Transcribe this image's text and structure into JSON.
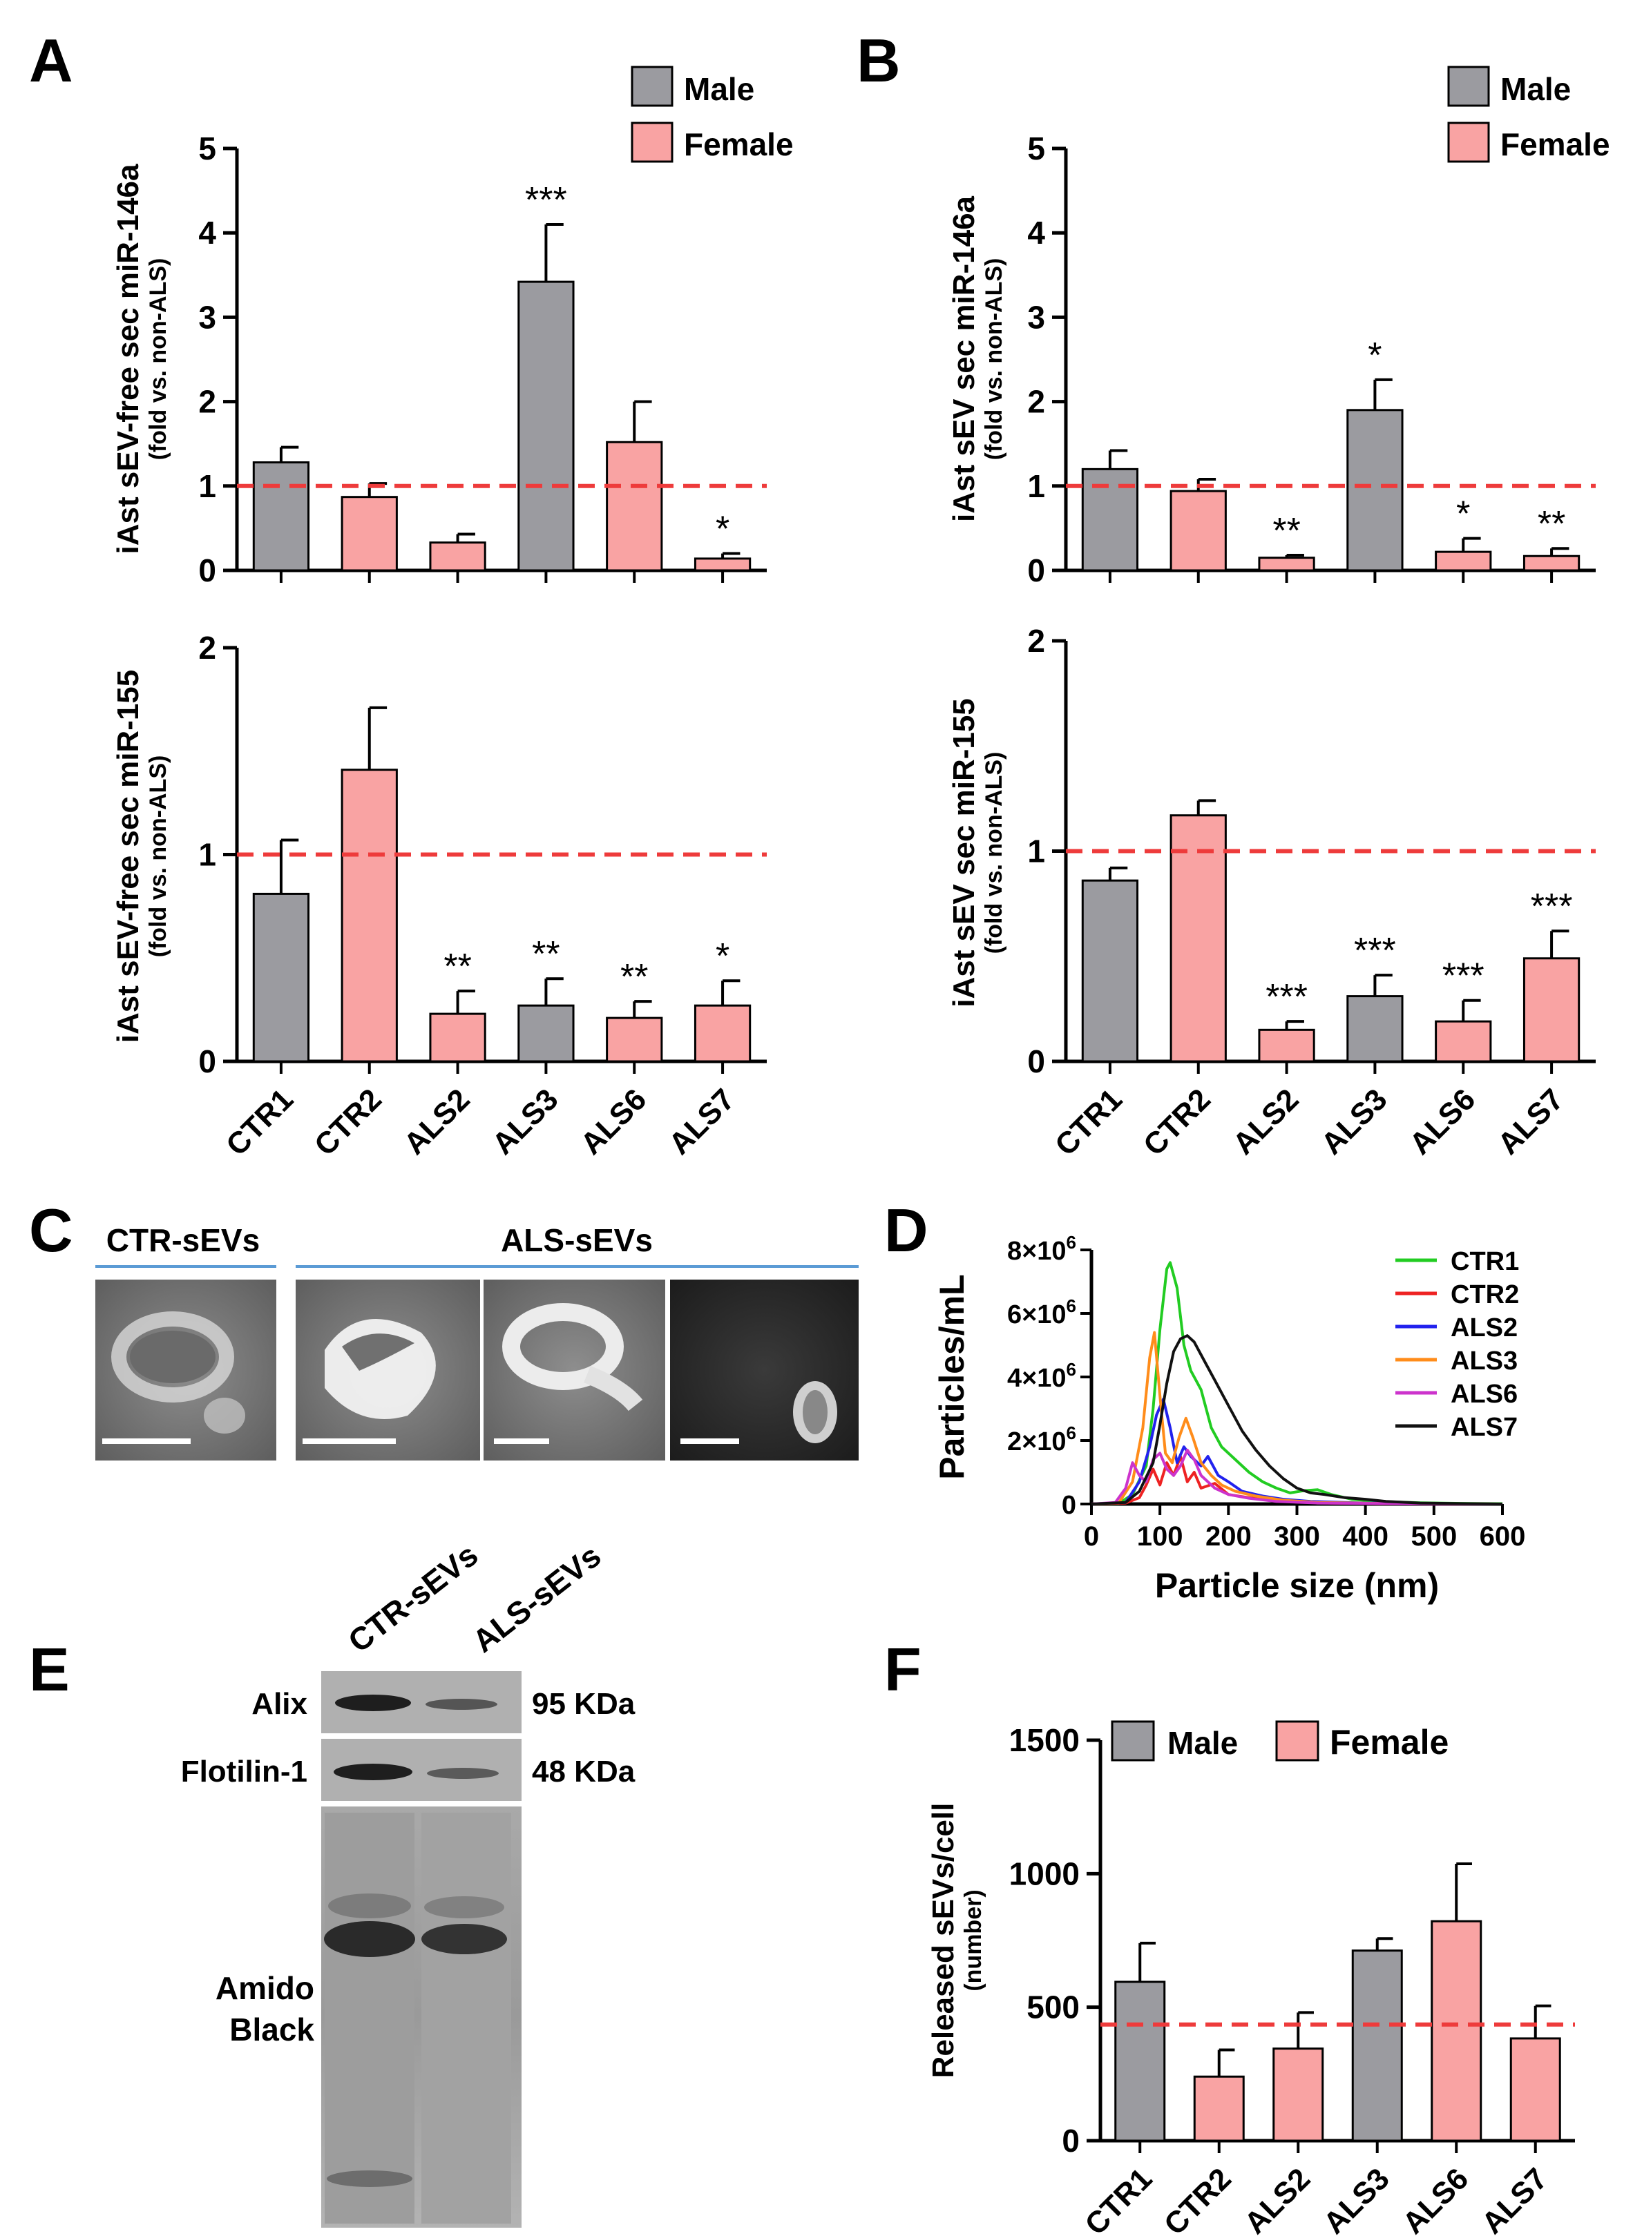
{
  "panel_labels": {
    "A": "A",
    "B": "B",
    "C": "C",
    "D": "D",
    "E": "E",
    "F": "F"
  },
  "legend": {
    "male": "Male",
    "female": "Female",
    "male_color": "#9b9ba0",
    "female_color": "#f9a3a3"
  },
  "colors": {
    "reference_line": "#ee3b3b",
    "bar_outline": "#000000"
  },
  "chart_data": [
    {
      "id": "A-top",
      "type": "bar",
      "title": "",
      "ylabel": "iAst sEV-free sec miR-146a",
      "ylabel_sub": "(fold vs. non-ALS)",
      "categories": [
        "CTR1",
        "CTR2",
        "ALS2",
        "ALS3",
        "ALS6",
        "ALS7"
      ],
      "sex": [
        "male",
        "female",
        "female",
        "male",
        "female",
        "female"
      ],
      "values": [
        1.28,
        0.87,
        0.33,
        3.42,
        1.52,
        0.14
      ],
      "errors": [
        0.18,
        0.16,
        0.1,
        0.68,
        0.48,
        0.06
      ],
      "significance": [
        "",
        "",
        "",
        "***",
        "",
        "*"
      ],
      "ylim": [
        0,
        5
      ],
      "yticks": [
        "0",
        "1",
        "2",
        "3",
        "4",
        "5"
      ],
      "reference_line": 1,
      "show_category_labels": false
    },
    {
      "id": "A-bottom",
      "type": "bar",
      "title": "",
      "ylabel": "iAst sEV-free sec miR-155",
      "ylabel_sub": "(fold vs. non-ALS)",
      "categories": [
        "CTR1",
        "CTR2",
        "ALS2",
        "ALS3",
        "ALS6",
        "ALS7"
      ],
      "sex": [
        "male",
        "female",
        "female",
        "male",
        "female",
        "female"
      ],
      "values": [
        0.81,
        1.41,
        0.23,
        0.27,
        0.21,
        0.27
      ],
      "errors": [
        0.26,
        0.3,
        0.11,
        0.13,
        0.08,
        0.12
      ],
      "significance": [
        "",
        "",
        "**",
        "**",
        "**",
        "*"
      ],
      "ylim": [
        0,
        2
      ],
      "yticks": [
        "0",
        "1",
        "2"
      ],
      "reference_line": 1,
      "show_category_labels": true
    },
    {
      "id": "B-top",
      "type": "bar",
      "title": "",
      "ylabel": "iAst sEV sec miR-146a",
      "ylabel_sub": "(fold vs. non-ALS)",
      "categories": [
        "CTR1",
        "CTR2",
        "ALS2",
        "ALS3",
        "ALS6",
        "ALS7"
      ],
      "sex": [
        "male",
        "female",
        "female",
        "male",
        "female",
        "female"
      ],
      "values": [
        1.2,
        0.94,
        0.15,
        1.9,
        0.22,
        0.17
      ],
      "errors": [
        0.22,
        0.14,
        0.03,
        0.36,
        0.16,
        0.09
      ],
      "significance": [
        "",
        "",
        "**",
        "*",
        "*",
        "**"
      ],
      "ylim": [
        0,
        5
      ],
      "yticks": [
        "0",
        "1",
        "2",
        "3",
        "4",
        "5"
      ],
      "reference_line": 1,
      "show_category_labels": false
    },
    {
      "id": "B-bottom",
      "type": "bar",
      "title": "",
      "ylabel": "iAst sEV sec miR-155",
      "ylabel_sub": "(fold vs. non-ALS)",
      "categories": [
        "CTR1",
        "CTR2",
        "ALS2",
        "ALS3",
        "ALS6",
        "ALS7"
      ],
      "sex": [
        "male",
        "female",
        "female",
        "male",
        "female",
        "female"
      ],
      "values": [
        0.86,
        1.17,
        0.15,
        0.31,
        0.19,
        0.49
      ],
      "errors": [
        0.06,
        0.07,
        0.04,
        0.1,
        0.1,
        0.13
      ],
      "significance": [
        "",
        "",
        "***",
        "***",
        "***",
        "***"
      ],
      "ylim": [
        0,
        2
      ],
      "yticks": [
        "0",
        "1",
        "2"
      ],
      "reference_line": 1,
      "show_category_labels": true
    },
    {
      "id": "D",
      "type": "line",
      "title": "",
      "xlabel": "Particle size (nm)",
      "ylabel": "Particles/mL",
      "xlim": [
        0,
        600
      ],
      "ylim": [
        0,
        8000000
      ],
      "xticks": [
        "0",
        "100",
        "200",
        "300",
        "400",
        "500",
        "600"
      ],
      "yticks": [
        {
          "base": "0",
          "exp": ""
        },
        {
          "base": "2×10",
          "exp": "6"
        },
        {
          "base": "4×10",
          "exp": "6"
        },
        {
          "base": "6×10",
          "exp": "6"
        },
        {
          "base": "8×10",
          "exp": "6"
        }
      ],
      "legend_position": "top-right",
      "series": [
        {
          "name": "CTR1",
          "color": "#22cc22",
          "points": [
            [
              0,
              0
            ],
            [
              40,
              20000
            ],
            [
              60,
              300000
            ],
            [
              80,
              1200000
            ],
            [
              90,
              3000000
            ],
            [
              100,
              5500000
            ],
            [
              110,
              7400000
            ],
            [
              115,
              7600000
            ],
            [
              125,
              6800000
            ],
            [
              135,
              5000000
            ],
            [
              145,
              4200000
            ],
            [
              160,
              3600000
            ],
            [
              175,
              2400000
            ],
            [
              190,
              1800000
            ],
            [
              210,
              1400000
            ],
            [
              230,
              1000000
            ],
            [
              250,
              700000
            ],
            [
              270,
              500000
            ],
            [
              290,
              350000
            ],
            [
              310,
              420000
            ],
            [
              330,
              450000
            ],
            [
              350,
              300000
            ],
            [
              380,
              150000
            ],
            [
              420,
              80000
            ],
            [
              480,
              40000
            ],
            [
              540,
              20000
            ],
            [
              600,
              10000
            ]
          ]
        },
        {
          "name": "CTR2",
          "color": "#ee2222",
          "points": [
            [
              0,
              0
            ],
            [
              50,
              30000
            ],
            [
              70,
              200000
            ],
            [
              80,
              600000
            ],
            [
              90,
              1100000
            ],
            [
              100,
              600000
            ],
            [
              110,
              1300000
            ],
            [
              120,
              900000
            ],
            [
              130,
              1500000
            ],
            [
              140,
              700000
            ],
            [
              150,
              1000000
            ],
            [
              160,
              500000
            ],
            [
              180,
              650000
            ],
            [
              200,
              300000
            ],
            [
              230,
              200000
            ],
            [
              260,
              120000
            ],
            [
              300,
              60000
            ],
            [
              350,
              30000
            ],
            [
              450,
              10000
            ],
            [
              600,
              0
            ]
          ]
        },
        {
          "name": "ALS2",
          "color": "#2222ee",
          "points": [
            [
              0,
              0
            ],
            [
              50,
              50000
            ],
            [
              70,
              700000
            ],
            [
              85,
              1800000
            ],
            [
              95,
              2800000
            ],
            [
              105,
              3300000
            ],
            [
              115,
              2400000
            ],
            [
              125,
              1300000
            ],
            [
              135,
              1800000
            ],
            [
              145,
              1500000
            ],
            [
              160,
              1200000
            ],
            [
              170,
              1500000
            ],
            [
              185,
              900000
            ],
            [
              200,
              700000
            ],
            [
              220,
              400000
            ],
            [
              250,
              250000
            ],
            [
              280,
              150000
            ],
            [
              320,
              80000
            ],
            [
              400,
              30000
            ],
            [
              600,
              0
            ]
          ]
        },
        {
          "name": "ALS3",
          "color": "#ff8c1a",
          "points": [
            [
              0,
              0
            ],
            [
              40,
              40000
            ],
            [
              60,
              700000
            ],
            [
              75,
              2400000
            ],
            [
              85,
              4600000
            ],
            [
              92,
              5400000
            ],
            [
              100,
              3400000
            ],
            [
              108,
              1600000
            ],
            [
              118,
              1300000
            ],
            [
              128,
              2100000
            ],
            [
              138,
              2700000
            ],
            [
              148,
              2100000
            ],
            [
              160,
              1300000
            ],
            [
              175,
              900000
            ],
            [
              190,
              600000
            ],
            [
              210,
              400000
            ],
            [
              240,
              250000
            ],
            [
              280,
              120000
            ],
            [
              330,
              50000
            ],
            [
              420,
              20000
            ],
            [
              600,
              0
            ]
          ]
        },
        {
          "name": "ALS6",
          "color": "#cc33cc",
          "points": [
            [
              0,
              0
            ],
            [
              35,
              50000
            ],
            [
              50,
              500000
            ],
            [
              60,
              1300000
            ],
            [
              70,
              900000
            ],
            [
              80,
              700000
            ],
            [
              90,
              1400000
            ],
            [
              100,
              1600000
            ],
            [
              110,
              1100000
            ],
            [
              120,
              900000
            ],
            [
              130,
              1200000
            ],
            [
              140,
              1700000
            ],
            [
              150,
              1400000
            ],
            [
              160,
              900000
            ],
            [
              180,
              500000
            ],
            [
              200,
              300000
            ],
            [
              230,
              180000
            ],
            [
              270,
              80000
            ],
            [
              330,
              30000
            ],
            [
              450,
              10000
            ],
            [
              600,
              0
            ]
          ]
        },
        {
          "name": "ALS7",
          "color": "#111111",
          "points": [
            [
              0,
              0
            ],
            [
              50,
              50000
            ],
            [
              70,
              400000
            ],
            [
              90,
              1300000
            ],
            [
              100,
              2500000
            ],
            [
              110,
              3800000
            ],
            [
              120,
              4800000
            ],
            [
              130,
              5200000
            ],
            [
              140,
              5300000
            ],
            [
              150,
              5100000
            ],
            [
              165,
              4500000
            ],
            [
              180,
              3900000
            ],
            [
              200,
              3100000
            ],
            [
              220,
              2300000
            ],
            [
              240,
              1700000
            ],
            [
              260,
              1200000
            ],
            [
              280,
              800000
            ],
            [
              300,
              500000
            ],
            [
              320,
              350000
            ],
            [
              340,
              300000
            ],
            [
              370,
              200000
            ],
            [
              400,
              150000
            ],
            [
              430,
              80000
            ],
            [
              480,
              30000
            ],
            [
              550,
              10000
            ],
            [
              600,
              0
            ]
          ]
        }
      ]
    },
    {
      "id": "F",
      "type": "bar",
      "title": "",
      "ylabel": "Released sEVs/cell",
      "ylabel_sub": "(number)",
      "categories": [
        "CTR1",
        "CTR2",
        "ALS2",
        "ALS3",
        "ALS6",
        "ALS7"
      ],
      "sex": [
        "male",
        "female",
        "female",
        "male",
        "female",
        "female"
      ],
      "values": [
        595,
        240,
        345,
        712,
        822,
        383
      ],
      "errors": [
        145,
        100,
        135,
        45,
        215,
        122
      ],
      "significance": [
        "",
        "",
        "",
        "",
        "",
        ""
      ],
      "ylim": [
        0,
        1500
      ],
      "yticks": [
        "0",
        "500",
        "1000",
        "1500"
      ],
      "reference_line": 435,
      "show_category_labels": true
    }
  ],
  "panel_c": {
    "group_ctr": "CTR-sEVs",
    "group_als": "ALS-sEVs",
    "group_rule_color": "#5b9bd5",
    "images": [
      "CTR-sEV micrograph",
      "ALS-sEV micrograph 1",
      "ALS-sEV micrograph 2",
      "ALS-sEV micrograph 3"
    ]
  },
  "panel_e": {
    "lane_labels": [
      "CTR-sEVs",
      "ALS-sEVs"
    ],
    "rows": [
      {
        "label": "Alix",
        "mw": "95 KDa"
      },
      {
        "label": "Flotilin-1",
        "mw": "48 KDa"
      }
    ],
    "stain_label_line1": "Amido",
    "stain_label_line2": "Black"
  }
}
